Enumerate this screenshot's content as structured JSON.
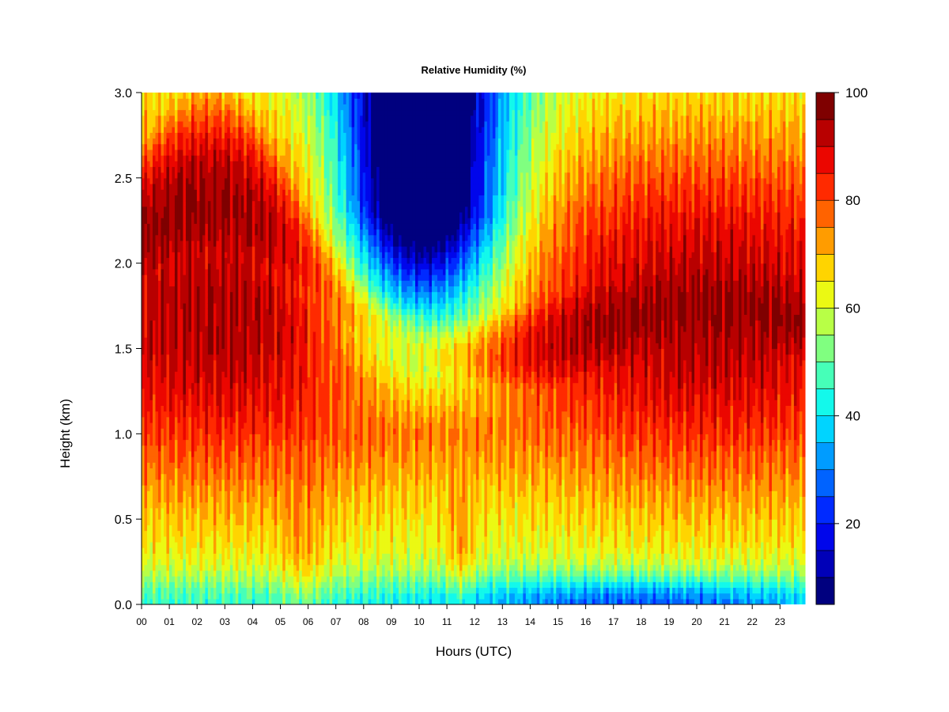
{
  "chart_data": {
    "type": "heatmap",
    "title": "Relative Humidity (%)",
    "xlabel": "Hours (UTC)",
    "ylabel": "Height (km)",
    "x_ticks": [
      "00",
      "01",
      "02",
      "03",
      "04",
      "05",
      "06",
      "07",
      "08",
      "09",
      "10",
      "11",
      "12",
      "13",
      "14",
      "15",
      "16",
      "17",
      "18",
      "19",
      "20",
      "21",
      "22",
      "23"
    ],
    "y_ticks": [
      "0.0",
      "0.5",
      "1.0",
      "1.5",
      "2.0",
      "2.5",
      "3.0"
    ],
    "xlim": [
      0,
      23.9
    ],
    "ylim": [
      0,
      3.0
    ],
    "colorbar": {
      "ticks": [
        "20",
        "40",
        "60",
        "80",
        "100"
      ],
      "range": [
        5,
        100
      ],
      "levels": 19,
      "colors": [
        "#00007f",
        "#0000b2",
        "#0000e5",
        "#0019ff",
        "#004cff",
        "#0080ff",
        "#00b2ff",
        "#00e5ff",
        "#19ffe5",
        "#4cffb2",
        "#80ff80",
        "#b2ff4c",
        "#e5ff19",
        "#ffe500",
        "#ffb200",
        "#ff8000",
        "#ff4c00",
        "#ff1900",
        "#e50000",
        "#b20000",
        "#7f0000"
      ]
    },
    "grid": false,
    "legend": "colorbar-right"
  }
}
